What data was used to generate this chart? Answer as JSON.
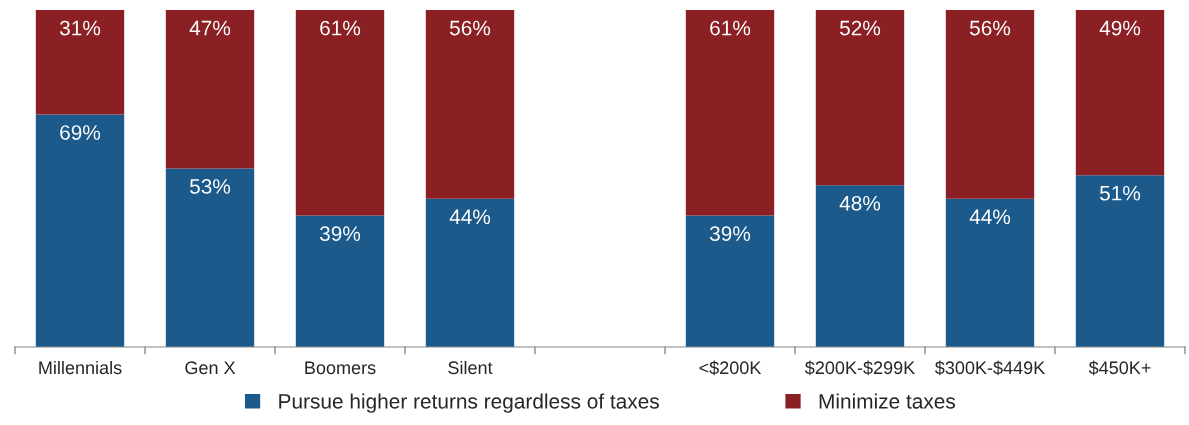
{
  "chart_data": {
    "type": "bar",
    "stacked": true,
    "legend": "bottom",
    "grid": false,
    "categories": [
      "Millennials",
      "Gen X",
      "Boomers",
      "Silent",
      null,
      "<$200K",
      "$200K-$299K",
      "$300K-$449K",
      "$450K+"
    ],
    "series": [
      {
        "name": "Pursue higher returns regardless of taxes",
        "color": "#1b5a8a",
        "values": [
          69,
          53,
          39,
          44,
          null,
          39,
          48,
          44,
          51
        ],
        "value_labels": [
          "69%",
          "53%",
          "39%",
          "44%",
          null,
          "39%",
          "48%",
          "44%",
          "51%"
        ]
      },
      {
        "name": "Minimize taxes",
        "color": "#8b2024",
        "values": [
          31,
          47,
          61,
          56,
          null,
          61,
          52,
          56,
          49
        ],
        "value_labels": [
          "31%",
          "47%",
          "61%",
          "56%",
          null,
          "61%",
          "52%",
          "56%",
          "49%"
        ]
      }
    ]
  }
}
